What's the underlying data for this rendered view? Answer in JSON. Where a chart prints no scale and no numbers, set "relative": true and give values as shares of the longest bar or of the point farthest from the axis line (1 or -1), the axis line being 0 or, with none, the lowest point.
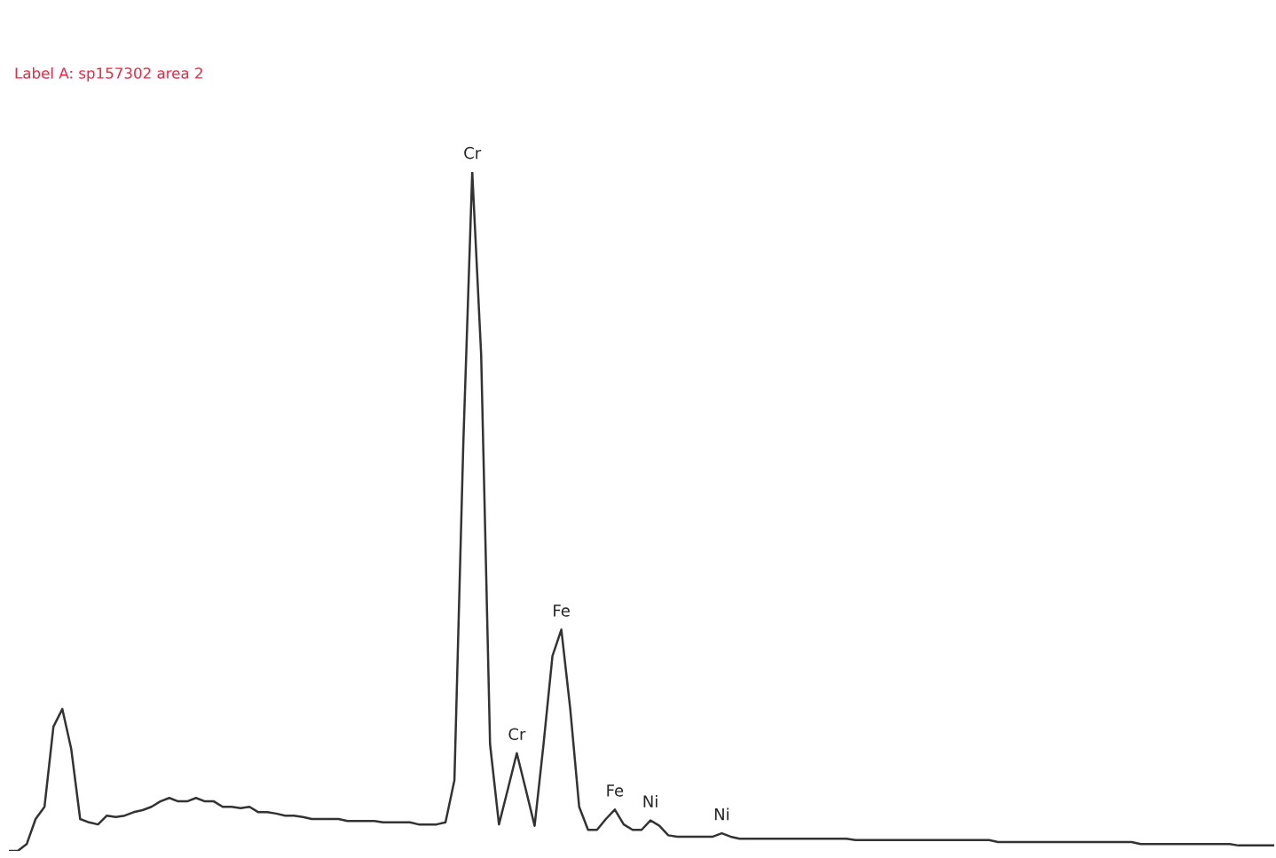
{
  "chart_data": {
    "type": "line",
    "relative": true,
    "color": "#333333",
    "legend": false,
    "marker": "none",
    "line_style": "solid",
    "categories": [
      null,
      null,
      null,
      null,
      null,
      null,
      null,
      null,
      null,
      null,
      null,
      null,
      null,
      null,
      null,
      null,
      null,
      null,
      null,
      null,
      null,
      null,
      null,
      null,
      null,
      null,
      null,
      null,
      null,
      null,
      null,
      null,
      null,
      null,
      null,
      null,
      null,
      null,
      null,
      null,
      null,
      null,
      null,
      null,
      null,
      null,
      null,
      null,
      null,
      null,
      null,
      null,
      null,
      null,
      null,
      null,
      null,
      null,
      null,
      null,
      null,
      null,
      null,
      null,
      null,
      null,
      null,
      null,
      null,
      null,
      null,
      null,
      null,
      null,
      null,
      null,
      null,
      null,
      null,
      null,
      null,
      null,
      null,
      null,
      null,
      null,
      null,
      null,
      null,
      null,
      null,
      null,
      null,
      null,
      null,
      null,
      null,
      null,
      null,
      null,
      null,
      null,
      null,
      null,
      null,
      null,
      null,
      null,
      null,
      null,
      null,
      null,
      null,
      null,
      null,
      null,
      null,
      null,
      null,
      null,
      null,
      null,
      null,
      null,
      null,
      null,
      null,
      null,
      null,
      null,
      null,
      null,
      null,
      null,
      null,
      null,
      null,
      null,
      null,
      null,
      null,
      null,
      null
    ],
    "values": [
      0,
      0,
      0.01,
      0.047,
      0.065,
      0.183,
      0.209,
      0.15,
      0.047,
      0.042,
      0.039,
      0.052,
      0.05,
      0.052,
      0.057,
      0.06,
      0.065,
      0.073,
      0.078,
      0.073,
      0.073,
      0.078,
      0.073,
      0.073,
      0.065,
      0.065,
      0.063,
      0.065,
      0.057,
      0.057,
      0.055,
      0.052,
      0.052,
      0.05,
      0.047,
      0.047,
      0.047,
      0.047,
      0.044,
      0.044,
      0.044,
      0.044,
      0.042,
      0.042,
      0.042,
      0.042,
      0.039,
      0.039,
      0.039,
      0.042,
      0.104,
      0.601,
      1,
      0.731,
      0.157,
      0.039,
      0.091,
      0.144,
      0.091,
      0.037,
      0.157,
      0.287,
      0.326,
      0.209,
      0.065,
      0.031,
      0.031,
      0.047,
      0.061,
      0.039,
      0.031,
      0.031,
      0.045,
      0.037,
      0.023,
      0.021,
      0.021,
      0.021,
      0.021,
      0.021,
      0.026,
      0.021,
      0.018,
      0.018,
      0.018,
      0.018,
      0.018,
      0.018,
      0.018,
      0.018,
      0.018,
      0.018,
      0.018,
      0.018,
      0.018,
      0.016,
      0.016,
      0.016,
      0.016,
      0.016,
      0.016,
      0.016,
      0.016,
      0.016,
      0.016,
      0.016,
      0.016,
      0.016,
      0.016,
      0.016,
      0.016,
      0.013,
      0.013,
      0.013,
      0.013,
      0.013,
      0.013,
      0.013,
      0.013,
      0.013,
      0.013,
      0.013,
      0.013,
      0.013,
      0.013,
      0.013,
      0.013,
      0.01,
      0.01,
      0.01,
      0.01,
      0.01,
      0.01,
      0.01,
      0.01,
      0.01,
      0.01,
      0.01,
      0.008,
      0.008,
      0.008,
      0.008,
      0.008
    ],
    "annotations": [
      "Label A: sp157302 area 2",
      {
        "text": "Cr",
        "y": 1
      },
      {
        "text": "Cr",
        "y": 0.144
      },
      {
        "text": "Fe",
        "y": 0.326
      },
      {
        "text": "Fe",
        "y": 0.061
      },
      {
        "text": "Ni",
        "y": 0.045
      },
      {
        "text": "Ni",
        "y": 0.026
      }
    ]
  }
}
